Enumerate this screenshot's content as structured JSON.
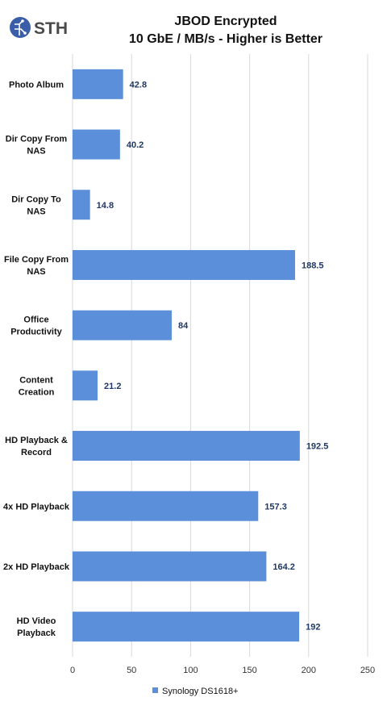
{
  "brand": {
    "logo_text": "STH",
    "colors": {
      "logo_circle": "#3a5ea8",
      "logo_text": "#4a4a4a"
    }
  },
  "chart_data": {
    "type": "bar",
    "orientation": "horizontal",
    "title": "JBOD Encrypted",
    "subtitle": "10 GbE / MB/s - Higher is Better",
    "categories": [
      "Photo Album",
      "Dir Copy From NAS",
      "Dir Copy To NAS",
      "File Copy From NAS",
      "Office Productivity",
      "Content Creation",
      "HD Playback & Record",
      "4x HD Playback",
      "2x HD Playback",
      "HD Video Playback"
    ],
    "category_lines": [
      [
        "Photo Album"
      ],
      [
        "Dir Copy From",
        "NAS"
      ],
      [
        "Dir Copy To",
        "NAS"
      ],
      [
        "File Copy From",
        "NAS"
      ],
      [
        "Office",
        "Productivity"
      ],
      [
        "Content",
        "Creation"
      ],
      [
        "HD Playback &",
        "Record"
      ],
      [
        "4x HD Playback"
      ],
      [
        "2x HD Playback"
      ],
      [
        "HD Video",
        "Playback"
      ]
    ],
    "series": [
      {
        "name": "Synology DS1618+",
        "values": [
          42.8,
          40.2,
          14.8,
          188.5,
          84,
          21.2,
          192.5,
          157.3,
          164.2,
          192
        ],
        "value_labels": [
          "42.8",
          "40.2",
          "14.8",
          "188.5",
          "84",
          "21.2",
          "192.5",
          "157.3",
          "164.2",
          "192"
        ],
        "color": "#5b8fd9"
      }
    ],
    "xlim": [
      0,
      250
    ],
    "x_ticks": [
      0,
      50,
      100,
      150,
      200,
      250
    ],
    "x_tick_labels": [
      "0",
      "50",
      "100",
      "150",
      "200",
      "250"
    ],
    "grid": "vertical",
    "legend": "bottom",
    "colors": {
      "gridline": "#d9d9d9",
      "value_label": "#1f3864"
    }
  }
}
